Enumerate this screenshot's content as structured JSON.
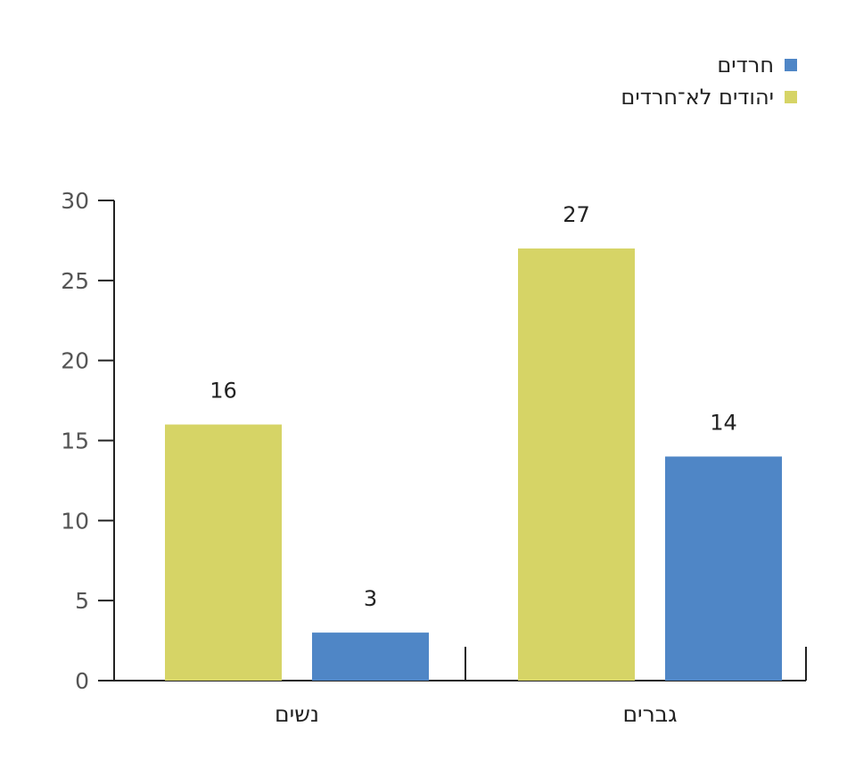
{
  "chart_data": {
    "type": "bar",
    "categories": [
      "נשים",
      "גברים"
    ],
    "series": [
      {
        "name": "יהודים לא־חרדים",
        "values": [
          16,
          27
        ],
        "color": "#d6d466"
      },
      {
        "name": "חרדים",
        "values": [
          3,
          14
        ],
        "color": "#4f86c6"
      }
    ],
    "ylim": [
      0,
      30
    ],
    "yticks": [
      0,
      5,
      10,
      15,
      20,
      25,
      30
    ],
    "legend_position": "top-right",
    "grid": false,
    "data_labels": true
  },
  "legend": {
    "items": [
      {
        "label": "חרדים",
        "color": "#4f86c6"
      },
      {
        "label": "יהודים לא־חרדים",
        "color": "#d6d466"
      }
    ]
  }
}
